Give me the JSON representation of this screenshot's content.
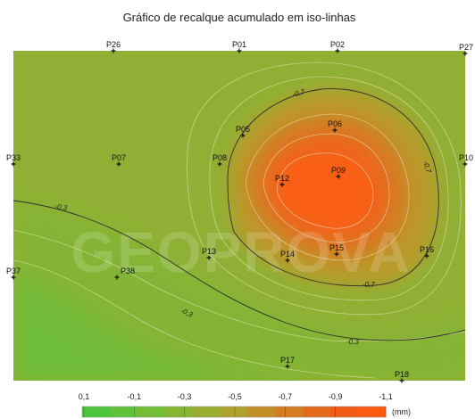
{
  "chart_data": {
    "type": "heatmap",
    "title": "Gráfico de recalque acumulado em iso-linhas",
    "unit": "(mm)",
    "watermark": "GEOPROVA",
    "colorbar": {
      "ticks": [
        "0,1",
        "-0,1",
        "-0,3",
        "-0,5",
        "-0,7",
        "-0,9",
        "-1,1"
      ],
      "colors": [
        "#4cc53d",
        "#5ec23b",
        "#74bd38",
        "#87b635",
        "#9aae31",
        "#b0a02c",
        "#c38f27",
        "#d57d22",
        "#e56a1d",
        "#f25a18",
        "#ff5a10"
      ]
    },
    "isoline_labels": [
      {
        "value": "-0,3",
        "place": "west"
      },
      {
        "value": "-0,3",
        "place": "south"
      },
      {
        "value": "-0,3",
        "place": "south-east"
      },
      {
        "value": "-0,7",
        "place": "north"
      },
      {
        "value": "-0,7",
        "place": "east"
      },
      {
        "value": "-0,7",
        "place": "south"
      }
    ],
    "points": [
      {
        "name": "P26"
      },
      {
        "name": "P01"
      },
      {
        "name": "P02"
      },
      {
        "name": "P27"
      },
      {
        "name": "P05"
      },
      {
        "name": "P06"
      },
      {
        "name": "P33"
      },
      {
        "name": "P07"
      },
      {
        "name": "P08"
      },
      {
        "name": "P12"
      },
      {
        "name": "P09"
      },
      {
        "name": "P10"
      },
      {
        "name": "P13"
      },
      {
        "name": "P14"
      },
      {
        "name": "P15"
      },
      {
        "name": "P16"
      },
      {
        "name": "P37"
      },
      {
        "name": "P38"
      },
      {
        "name": "P17"
      },
      {
        "name": "P18"
      }
    ]
  }
}
